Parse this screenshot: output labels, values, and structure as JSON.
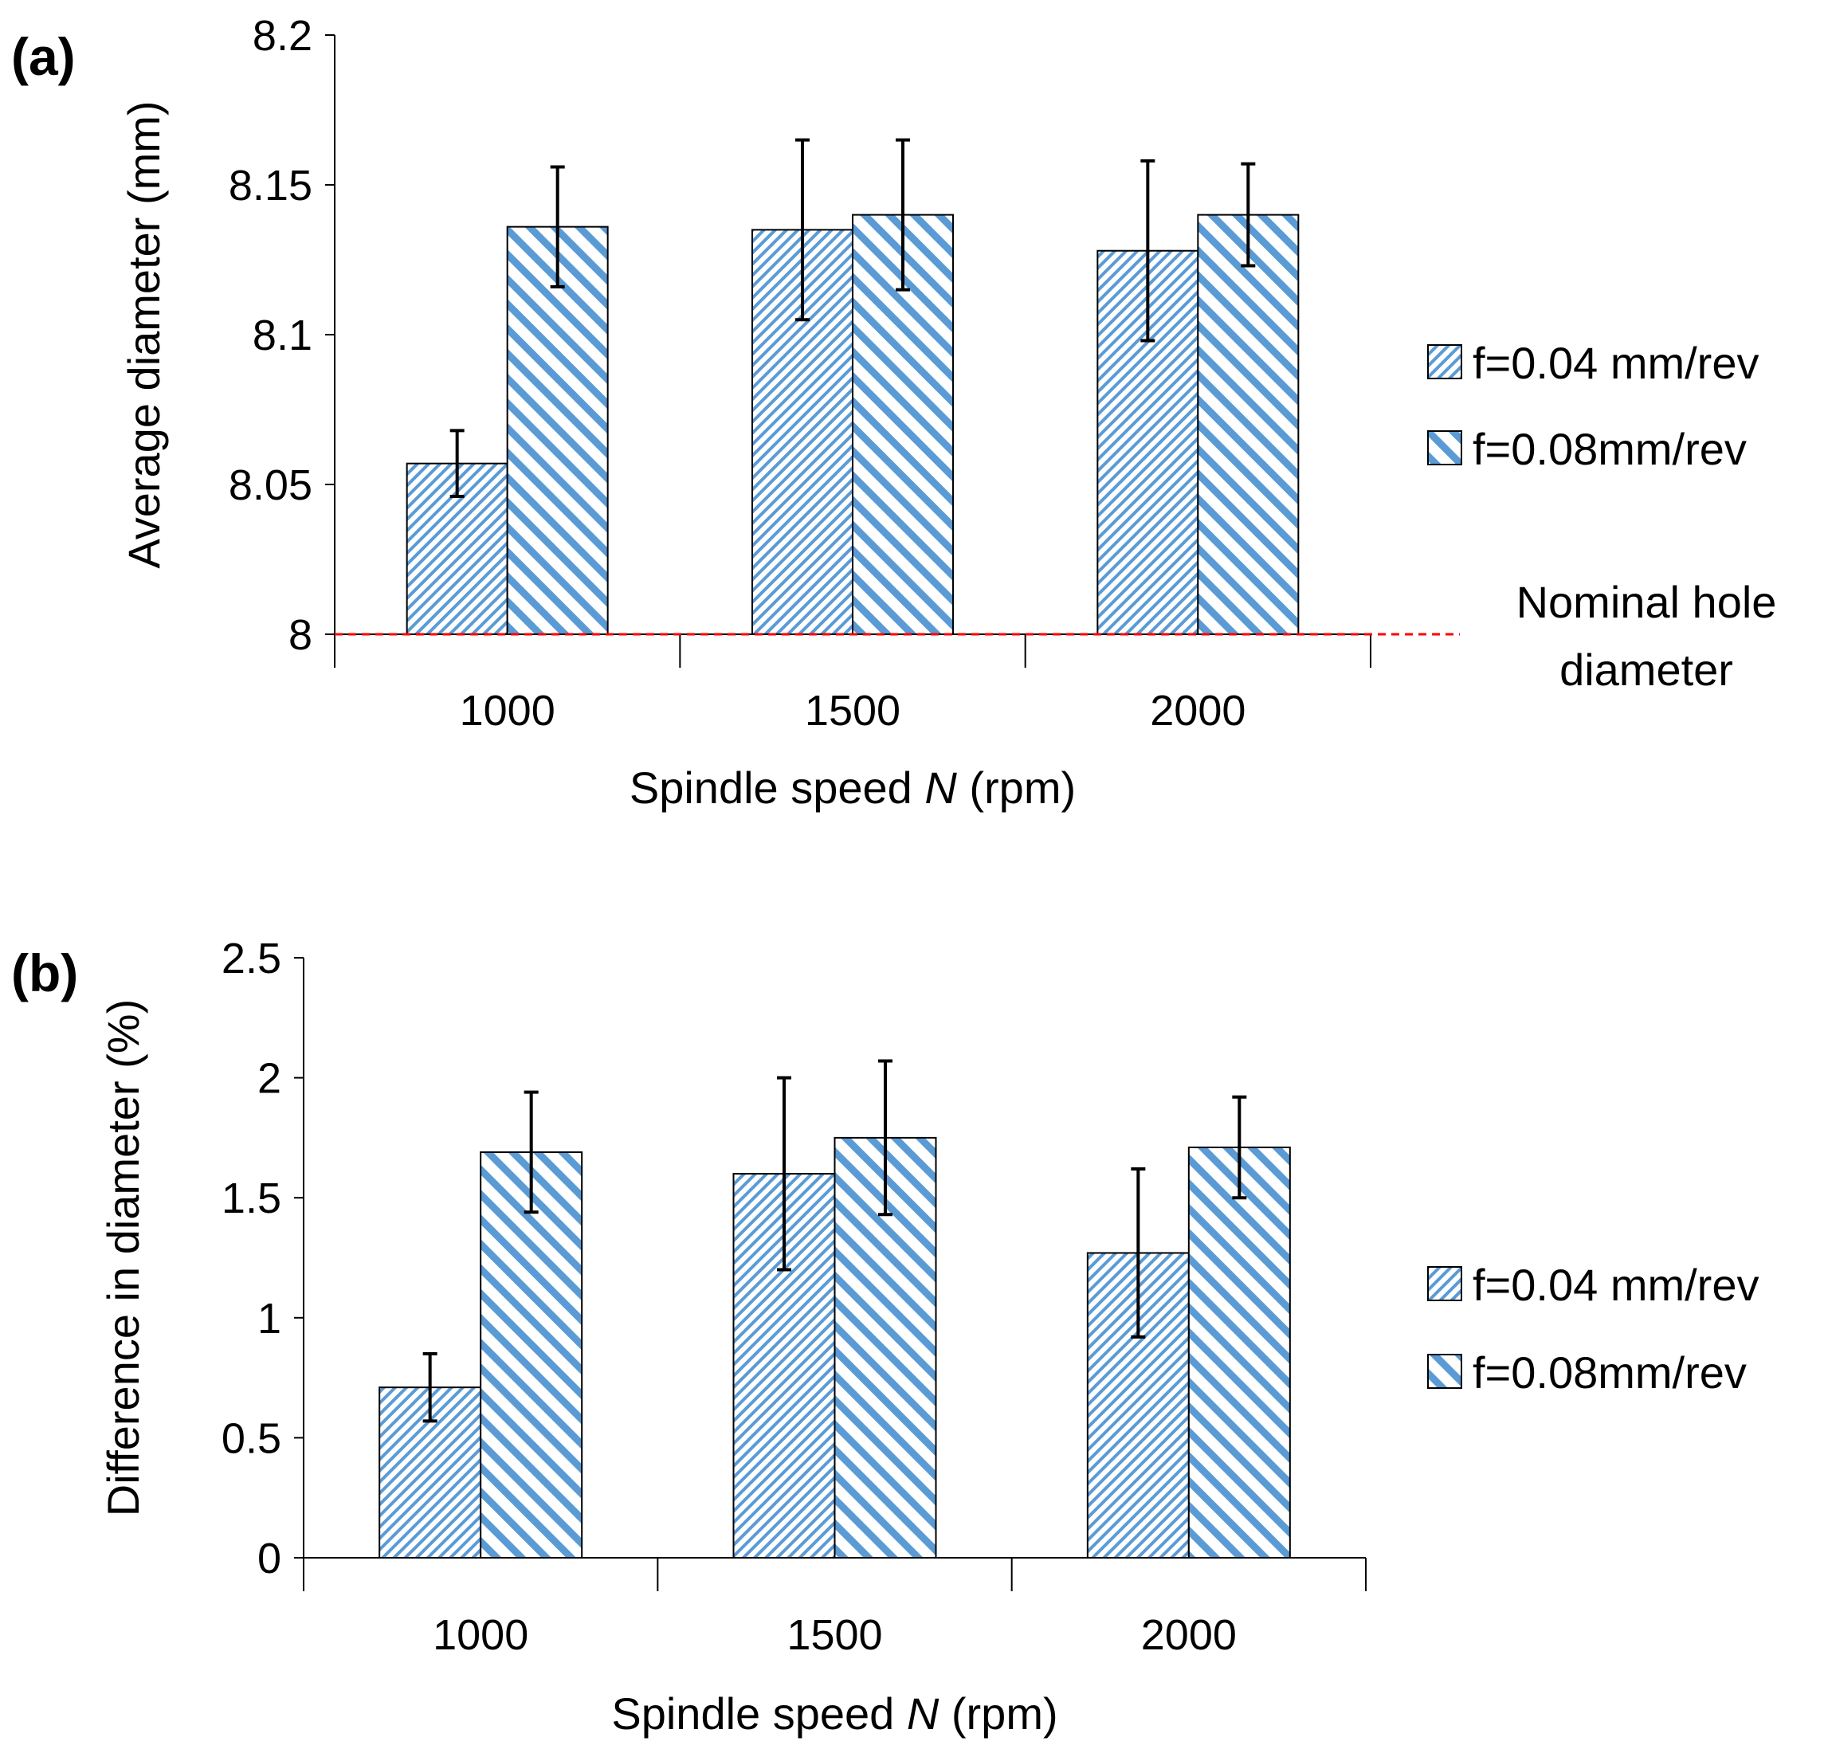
{
  "colors": {
    "bar_stripe": "#5b9bd5",
    "bar_bg": "#ffffff",
    "bar_edge": "#000000",
    "reference_line": "#ff0000"
  },
  "chart_data": [
    {
      "type": "bar",
      "panel_label": "(a)",
      "categories": [
        "1000",
        "1500",
        "2000"
      ],
      "series": [
        {
          "name": "f=0.04 mm/rev",
          "pattern": "dense-diagonal-stripes",
          "values": [
            8.057,
            8.135,
            8.128
          ],
          "error": [
            0.011,
            0.03,
            0.03
          ]
        },
        {
          "name": "f=0.08mm/rev",
          "pattern": "wide-diagonal-stripes",
          "values": [
            8.136,
            8.14,
            8.14
          ],
          "error": [
            0.02,
            0.025,
            0.017
          ]
        }
      ],
      "xlabel_parts": [
        "Spindle speed ",
        "N",
        " (rpm)"
      ],
      "ylabel": "Average diameter (mm)",
      "ylim": [
        8,
        8.2
      ],
      "yticks": [
        "8",
        "8.05",
        "8.1",
        "8.15",
        "8.2"
      ],
      "reference_line": {
        "value": 8,
        "style": "dashed",
        "label_lines": [
          "Nominal hole",
          "diameter"
        ]
      },
      "legend_position": "right",
      "grid": false
    },
    {
      "type": "bar",
      "panel_label": "(b)",
      "categories": [
        "1000",
        "1500",
        "2000"
      ],
      "series": [
        {
          "name": "f=0.04 mm/rev",
          "pattern": "dense-diagonal-stripes",
          "values": [
            0.71,
            1.6,
            1.27
          ],
          "error": [
            0.14,
            0.4,
            0.35
          ]
        },
        {
          "name": "f=0.08mm/rev",
          "pattern": "wide-diagonal-stripes",
          "values": [
            1.69,
            1.75,
            1.71
          ],
          "error": [
            0.25,
            0.32,
            0.21
          ]
        }
      ],
      "xlabel_parts": [
        "Spindle speed ",
        "N",
        " (rpm)"
      ],
      "ylabel": "Difference in diameter (%)",
      "ylim": [
        0,
        2.5
      ],
      "yticks": [
        "0",
        "0.5",
        "1",
        "1.5",
        "2",
        "2.5"
      ],
      "legend_position": "right",
      "grid": false
    }
  ]
}
